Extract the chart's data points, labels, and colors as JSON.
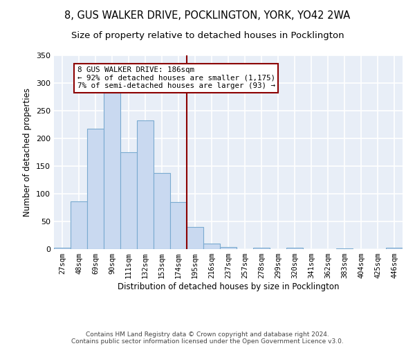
{
  "title": "8, GUS WALKER DRIVE, POCKLINGTON, YORK, YO42 2WA",
  "subtitle": "Size of property relative to detached houses in Pocklington",
  "xlabel": "Distribution of detached houses by size in Pocklington",
  "ylabel": "Number of detached properties",
  "categories": [
    "27sqm",
    "48sqm",
    "69sqm",
    "90sqm",
    "111sqm",
    "132sqm",
    "153sqm",
    "174sqm",
    "195sqm",
    "216sqm",
    "237sqm",
    "257sqm",
    "278sqm",
    "299sqm",
    "320sqm",
    "341sqm",
    "362sqm",
    "383sqm",
    "404sqm",
    "425sqm",
    "446sqm"
  ],
  "values": [
    3,
    86,
    218,
    283,
    175,
    232,
    138,
    85,
    40,
    10,
    4,
    0,
    2,
    0,
    3,
    0,
    0,
    1,
    0,
    0,
    2
  ],
  "bar_color": "#c9d9f0",
  "bar_edge_color": "#7aaad0",
  "vline_index": 7.5,
  "vline_color": "#8b0000",
  "annotation_text": "8 GUS WALKER DRIVE: 186sqm\n← 92% of detached houses are smaller (1,175)\n7% of semi-detached houses are larger (93) →",
  "annotation_box_color": "#8b0000",
  "ylim": [
    0,
    350
  ],
  "yticks": [
    0,
    50,
    100,
    150,
    200,
    250,
    300,
    350
  ],
  "background_color": "#e8eef7",
  "grid_color": "#ffffff",
  "footer_line1": "Contains HM Land Registry data © Crown copyright and database right 2024.",
  "footer_line2": "Contains public sector information licensed under the Open Government Licence v3.0.",
  "title_fontsize": 10.5,
  "subtitle_fontsize": 9.5,
  "xlabel_fontsize": 8.5,
  "ylabel_fontsize": 8.5,
  "tick_fontsize": 7.5,
  "annotation_fontsize": 7.8,
  "footer_fontsize": 6.5
}
